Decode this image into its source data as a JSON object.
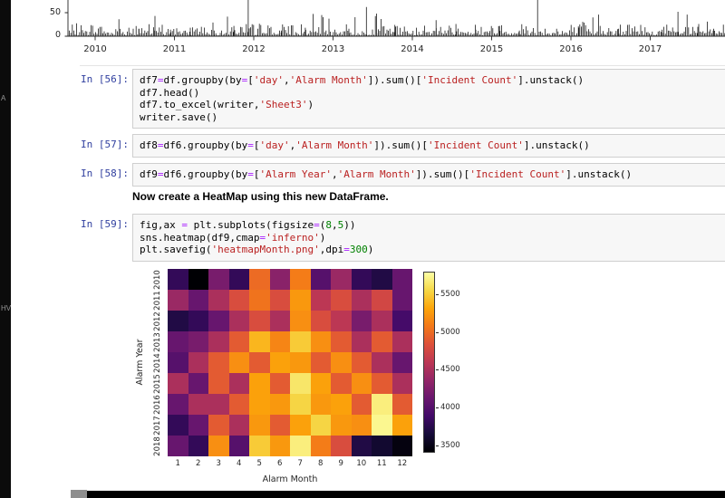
{
  "sidebar": {
    "labels": [
      "A",
      "HV"
    ]
  },
  "cells": [
    {
      "type": "code",
      "prompt": "In [56]:",
      "lines": [
        "df7=df.groupby(by=['day','Alarm Month']).sum()['Incident Count'].unstack()",
        "df7.head()",
        "df7.to_excel(writer,'Sheet3')",
        "writer.save()"
      ]
    },
    {
      "type": "code",
      "prompt": "In [57]:",
      "lines": [
        "df8=df6.groupby(by=['day','Alarm Month']).sum()['Incident Count'].unstack()"
      ]
    },
    {
      "type": "code",
      "prompt": "In [58]:",
      "lines": [
        "df9=df6.groupby(by=['Alarm Year','Alarm Month']).sum()['Incident Count'].unstack()"
      ]
    },
    {
      "type": "markdown",
      "text": "Now create a HeatMap using this new DataFrame."
    },
    {
      "type": "code",
      "prompt": "In [59]:",
      "lines": [
        "fig,ax = plt.subplots(figsize=(8,5))",
        "sns.heatmap(df9,cmap='inferno')",
        "plt.savefig('heatmapMonth.png',dpi=300)"
      ]
    }
  ],
  "chart_data": [
    {
      "id": "incident-timeseries",
      "type": "line",
      "title": "",
      "x_tick_labels": [
        "2010",
        "2011",
        "2012",
        "2013",
        "2014",
        "2015",
        "2016",
        "2017"
      ],
      "y_tick_labels": [
        "50",
        "0"
      ],
      "xlim": [
        2009.66,
        2017.95
      ],
      "visible_ylim": [
        0,
        62
      ],
      "line_color": "#1a1a1a",
      "spikes": [
        [
          2010.08,
          20
        ],
        [
          2010.3,
          36
        ],
        [
          2010.55,
          16
        ],
        [
          2010.75,
          12
        ],
        [
          2010.95,
          14
        ],
        [
          2011.2,
          18
        ],
        [
          2011.5,
          12
        ],
        [
          2011.75,
          22
        ],
        [
          2011.93,
          150
        ],
        [
          2012.05,
          16
        ],
        [
          2012.35,
          12
        ],
        [
          2012.65,
          18
        ],
        [
          2012.95,
          14
        ],
        [
          2013.2,
          16
        ],
        [
          2013.42,
          62
        ],
        [
          2013.55,
          48
        ],
        [
          2013.78,
          24
        ],
        [
          2014.05,
          18
        ],
        [
          2014.3,
          34
        ],
        [
          2014.55,
          26
        ],
        [
          2014.8,
          14
        ],
        [
          2015.1,
          22
        ],
        [
          2015.35,
          12
        ],
        [
          2015.58,
          145
        ],
        [
          2015.82,
          16
        ],
        [
          2016.1,
          18
        ],
        [
          2016.35,
          46
        ],
        [
          2016.6,
          16
        ],
        [
          2016.88,
          24
        ],
        [
          2017.15,
          14
        ],
        [
          2017.35,
          52
        ],
        [
          2017.6,
          20
        ],
        [
          2017.8,
          16
        ]
      ]
    },
    {
      "id": "alarm-heatmap",
      "type": "heatmap",
      "colormap": "inferno",
      "xlabel": "Alarm Month",
      "ylabel": "Alarm Year",
      "x_categories": [
        "1",
        "2",
        "3",
        "4",
        "5",
        "6",
        "7",
        "8",
        "9",
        "10",
        "11",
        "12"
      ],
      "y_categories": [
        "2010",
        "2011",
        "2012",
        "2013",
        "2014",
        "2015",
        "2016",
        "2017",
        "2018"
      ],
      "vmin": 3400,
      "vmax": 5800,
      "colorbar_ticks": [
        5500,
        5000,
        4500,
        4000,
        3500
      ],
      "values": [
        [
          3800,
          3400,
          4200,
          3800,
          5000,
          4300,
          5100,
          4000,
          4400,
          3800,
          3700,
          4100
        ],
        [
          4400,
          4100,
          4500,
          4800,
          5050,
          4800,
          5250,
          4600,
          4800,
          4500,
          4750,
          4100
        ],
        [
          3700,
          3800,
          4100,
          4500,
          4800,
          4500,
          5200,
          4800,
          4600,
          4200,
          4500,
          3900
        ],
        [
          4100,
          4200,
          4500,
          4900,
          5400,
          5150,
          5500,
          5200,
          4900,
          4500,
          4900,
          4500
        ],
        [
          4000,
          4500,
          4900,
          5200,
          4900,
          5300,
          5250,
          4900,
          5200,
          4900,
          4500,
          4100
        ],
        [
          4500,
          4100,
          4900,
          4500,
          5300,
          4900,
          5650,
          5300,
          4900,
          5200,
          4900,
          4500
        ],
        [
          4100,
          4500,
          4500,
          4900,
          5300,
          5250,
          5550,
          5250,
          5300,
          4900,
          5700,
          4900
        ],
        [
          3800,
          4100,
          4900,
          4500,
          5250,
          4900,
          5300,
          5550,
          5250,
          5200,
          5750,
          5300
        ],
        [
          4100,
          3800,
          5200,
          4000,
          5500,
          5250,
          5700,
          5100,
          4800,
          3700,
          3600,
          3450
        ]
      ]
    }
  ]
}
